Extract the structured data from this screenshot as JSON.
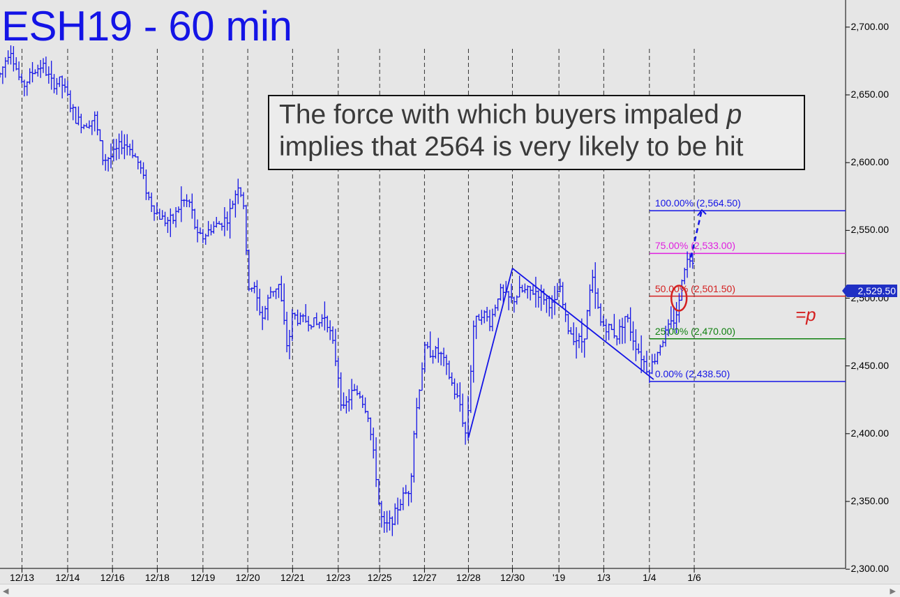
{
  "chart_data": {
    "type": "bar",
    "title": "ESH19 - 60 min",
    "annotation": {
      "line1": "The force with which buyers impaled ",
      "p_symbol": "p",
      "line2": "implies that 2564 is very likely to be hit"
    },
    "ylim": [
      2280,
      2720
    ],
    "y_ticks": [
      2300,
      2350,
      2400,
      2450,
      2500,
      2550,
      2600,
      2650,
      2700
    ],
    "y_tick_labels": [
      "2,300.00",
      "2,350.00",
      "2,400.00",
      "2,450.00",
      "2,500.00",
      "2,550.00",
      "2,600.00",
      "2,650.00",
      "2,700.00"
    ],
    "x_range": [
      0,
      100
    ],
    "x_ticks": [
      {
        "x": 2.6,
        "label": "12/13"
      },
      {
        "x": 8.0,
        "label": "12/14"
      },
      {
        "x": 13.3,
        "label": "12/16"
      },
      {
        "x": 18.6,
        "label": "12/18"
      },
      {
        "x": 24.0,
        "label": "12/19"
      },
      {
        "x": 29.3,
        "label": "12/20"
      },
      {
        "x": 34.6,
        "label": "12/21"
      },
      {
        "x": 40.0,
        "label": "12/23"
      },
      {
        "x": 44.9,
        "label": "12/25"
      },
      {
        "x": 50.2,
        "label": "12/27"
      },
      {
        "x": 55.4,
        "label": "12/28"
      },
      {
        "x": 60.6,
        "label": "12/30"
      },
      {
        "x": 66.1,
        "label": "'19"
      },
      {
        "x": 71.4,
        "label": "1/3"
      },
      {
        "x": 76.8,
        "label": "1/4"
      },
      {
        "x": 82.1,
        "label": "1/6"
      }
    ],
    "price_path": [
      [
        0,
        2665
      ],
      [
        1.2,
        2685
      ],
      [
        2.6,
        2655
      ],
      [
        4.0,
        2668
      ],
      [
        5.0,
        2672
      ],
      [
        6.2,
        2658
      ],
      [
        7.2,
        2660
      ],
      [
        8.0,
        2648
      ],
      [
        9.0,
        2632
      ],
      [
        10.0,
        2628
      ],
      [
        11.2,
        2633
      ],
      [
        12.2,
        2602
      ],
      [
        13.3,
        2605
      ],
      [
        14.5,
        2615
      ],
      [
        15.5,
        2610
      ],
      [
        16.5,
        2598
      ],
      [
        17.5,
        2575
      ],
      [
        18.6,
        2562
      ],
      [
        19.5,
        2557
      ],
      [
        20.5,
        2558
      ],
      [
        21.5,
        2572
      ],
      [
        22.5,
        2570
      ],
      [
        23.3,
        2545
      ],
      [
        24.0,
        2545
      ],
      [
        25.0,
        2552
      ],
      [
        26.0,
        2555
      ],
      [
        27.0,
        2560
      ],
      [
        28.2,
        2585
      ],
      [
        28.8,
        2570
      ],
      [
        29.3,
        2510
      ],
      [
        30.0,
        2508
      ],
      [
        31.0,
        2485
      ],
      [
        32.0,
        2505
      ],
      [
        33.0,
        2510
      ],
      [
        34.0,
        2462
      ],
      [
        34.6,
        2488
      ],
      [
        35.5,
        2483
      ],
      [
        36.5,
        2484
      ],
      [
        37.5,
        2480
      ],
      [
        38.5,
        2488
      ],
      [
        39.5,
        2462
      ],
      [
        40.0,
        2443
      ],
      [
        40.5,
        2415
      ],
      [
        41.5,
        2430
      ],
      [
        42.5,
        2430
      ],
      [
        43.5,
        2415
      ],
      [
        44.0,
        2392
      ],
      [
        44.5,
        2368
      ],
      [
        44.9,
        2342
      ],
      [
        45.5,
        2330
      ],
      [
        46.5,
        2338
      ],
      [
        47.5,
        2352
      ],
      [
        48.5,
        2360
      ],
      [
        49.0,
        2405
      ],
      [
        49.7,
        2440
      ],
      [
        50.2,
        2462
      ],
      [
        51.0,
        2460
      ],
      [
        52.0,
        2460
      ],
      [
        53.0,
        2445
      ],
      [
        53.8,
        2430
      ],
      [
        54.5,
        2420
      ],
      [
        55.0,
        2398
      ],
      [
        55.4,
        2420
      ],
      [
        56.0,
        2480
      ],
      [
        57.0,
        2490
      ],
      [
        58.0,
        2482
      ],
      [
        59.0,
        2505
      ],
      [
        60.0,
        2500
      ],
      [
        60.6,
        2498
      ],
      [
        61.5,
        2505
      ],
      [
        62.5,
        2505
      ],
      [
        63.5,
        2505
      ],
      [
        64.5,
        2500
      ],
      [
        65.5,
        2493
      ],
      [
        66.1,
        2510
      ],
      [
        67.0,
        2480
      ],
      [
        68.0,
        2470
      ],
      [
        69.0,
        2468
      ],
      [
        70.0,
        2515
      ],
      [
        71.0,
        2482
      ],
      [
        71.4,
        2480
      ],
      [
        72.0,
        2478
      ],
      [
        73.0,
        2472
      ],
      [
        74.0,
        2488
      ],
      [
        75.0,
        2468
      ],
      [
        76.0,
        2455
      ],
      [
        76.6,
        2447
      ],
      [
        77.2,
        2452
      ],
      [
        78.0,
        2465
      ],
      [
        79.0,
        2477
      ],
      [
        79.8,
        2485
      ],
      [
        80.3,
        2495
      ],
      [
        80.6,
        2515
      ],
      [
        81.0,
        2525
      ],
      [
        81.6,
        2530
      ],
      [
        82.0,
        2529.5
      ]
    ],
    "trend_lines": [
      {
        "from": [
          55.4,
          2397
        ],
        "to": [
          60.6,
          2522
        ]
      },
      {
        "from": [
          60.6,
          2522
        ],
        "to": [
          77.3,
          2440
        ]
      }
    ],
    "projection_arrow": {
      "from": [
        81.7,
        2530
      ],
      "to": [
        83.0,
        2565
      ]
    },
    "fib_levels": [
      {
        "pct": "100.00%",
        "price": 2564.5,
        "label": "(2,564.50)",
        "color": "#1414e6"
      },
      {
        "pct": "75.00%",
        "price": 2533.0,
        "label": "(2,533.00)",
        "color": "#e020e0"
      },
      {
        "pct": "50.00%",
        "price": 2501.5,
        "label": "(2,501.50)",
        "color": "#d42020"
      },
      {
        "pct": "25.00%",
        "price": 2470.0,
        "label": "(2,470.00)",
        "color": "#108010"
      },
      {
        "pct": "0.00%",
        "price": 2438.5,
        "label": "(2,438.50)",
        "color": "#1414e6"
      }
    ],
    "p_marker": "=p",
    "highlight_ellipse": {
      "x": 80.3,
      "price": 2500
    },
    "last_price": 2529.5,
    "last_price_label": "2,529.50",
    "bar_color": "#1414e6",
    "grid": "vertical dashed lines at day boundaries"
  }
}
